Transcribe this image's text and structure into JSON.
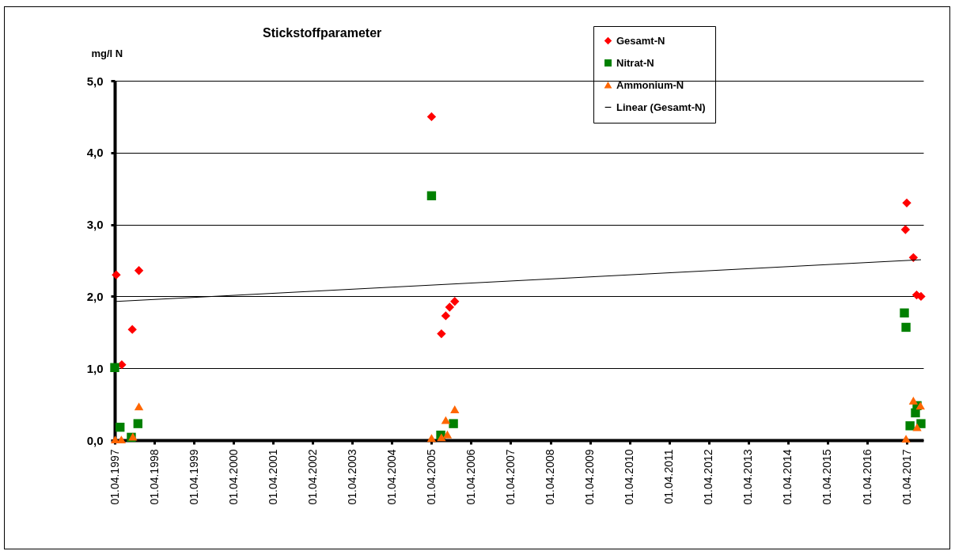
{
  "chart_data": {
    "type": "scatter",
    "title": "Stickstoffparameter",
    "ylabel": "mg/l N",
    "xlim": [
      "1997-04-01",
      "2017-09-01"
    ],
    "xticks": [
      {
        "value": "1997-04-01",
        "label": "01.04.1997"
      },
      {
        "value": "1998-04-01",
        "label": "01.04.1998"
      },
      {
        "value": "1999-04-01",
        "label": "01.04.1999"
      },
      {
        "value": "2000-04-01",
        "label": "01.04.2000"
      },
      {
        "value": "2001-04-01",
        "label": "01.04.2001"
      },
      {
        "value": "2002-04-01",
        "label": "01.04.2002"
      },
      {
        "value": "2003-04-01",
        "label": "01.04.2003"
      },
      {
        "value": "2004-04-01",
        "label": "01.04.2004"
      },
      {
        "value": "2005-04-01",
        "label": "01.04.2005"
      },
      {
        "value": "2006-04-01",
        "label": "01.04.2006"
      },
      {
        "value": "2007-04-01",
        "label": "01.04.2007"
      },
      {
        "value": "2008-04-01",
        "label": "01.04.2008"
      },
      {
        "value": "2009-04-01",
        "label": "01.04.2009"
      },
      {
        "value": "2010-04-01",
        "label": "01.04.2010"
      },
      {
        "value": "2011-04-01",
        "label": "01.04.2011"
      },
      {
        "value": "2012-04-01",
        "label": "01.04.2012"
      },
      {
        "value": "2013-04-01",
        "label": "01.04.2013"
      },
      {
        "value": "2014-04-01",
        "label": "01.04.2014"
      },
      {
        "value": "2015-04-01",
        "label": "01.04.2015"
      },
      {
        "value": "2016-04-01",
        "label": "01.04.2016"
      },
      {
        "value": "2017-04-01",
        "label": "01.04.2017"
      }
    ],
    "ylim": [
      0,
      5
    ],
    "yticks": [
      {
        "value": 0,
        "label": "0,0"
      },
      {
        "value": 1,
        "label": "1,0"
      },
      {
        "value": 2,
        "label": "2,0"
      },
      {
        "value": 3,
        "label": "3,0"
      },
      {
        "value": 4,
        "label": "4,0"
      },
      {
        "value": 5,
        "label": "5,0"
      }
    ],
    "grid": "y",
    "legend": "top right",
    "series": [
      {
        "name": "Gesamt-N",
        "marker": "diamond",
        "color": "#ff0000",
        "x": [
          "1997-04-15",
          "1997-06-05",
          "1997-09-10",
          "1997-11-10",
          "2005-04-01",
          "2005-07-01",
          "2005-08-10",
          "2005-09-15",
          "2005-11-01",
          "2017-03-20",
          "2017-04-01",
          "2017-06-01",
          "2017-07-01",
          "2017-08-10"
        ],
        "values": [
          2.3,
          1.05,
          1.54,
          2.36,
          4.5,
          1.48,
          1.73,
          1.85,
          1.93,
          2.93,
          3.3,
          2.54,
          2.02,
          2.0
        ]
      },
      {
        "name": "Nitrat-N",
        "marker": "square",
        "color": "#008000",
        "x": [
          "1997-04-01",
          "1997-05-20",
          "1997-09-01",
          "1997-11-01",
          "2005-04-01",
          "2005-06-25",
          "2005-10-20",
          "2017-03-10",
          "2017-03-25",
          "2017-05-01",
          "2017-06-20",
          "2017-07-05",
          "2017-08-10"
        ],
        "values": [
          1.01,
          0.18,
          0.04,
          0.23,
          3.4,
          0.07,
          0.23,
          1.77,
          1.57,
          0.2,
          0.38,
          0.48,
          0.23
        ]
      },
      {
        "name": "Ammonium-N",
        "marker": "triangle",
        "color": "#ff6600",
        "x": [
          "1997-04-05",
          "1997-06-01",
          "1997-09-15",
          "1997-11-10",
          "2005-04-01",
          "2005-07-01",
          "2005-08-10",
          "2005-08-25",
          "2005-11-01",
          "2017-03-25",
          "2017-06-01",
          "2017-07-05",
          "2017-08-05"
        ],
        "values": [
          0.01,
          0.01,
          0.05,
          0.47,
          0.03,
          0.04,
          0.28,
          0.08,
          0.43,
          0.02,
          0.55,
          0.18,
          0.48
        ]
      },
      {
        "name": "Linear (Gesamt-N)",
        "type": "line",
        "color": "#000000",
        "x": [
          "1997-04-15",
          "2017-08-10"
        ],
        "values": [
          1.93,
          2.51
        ]
      }
    ]
  }
}
